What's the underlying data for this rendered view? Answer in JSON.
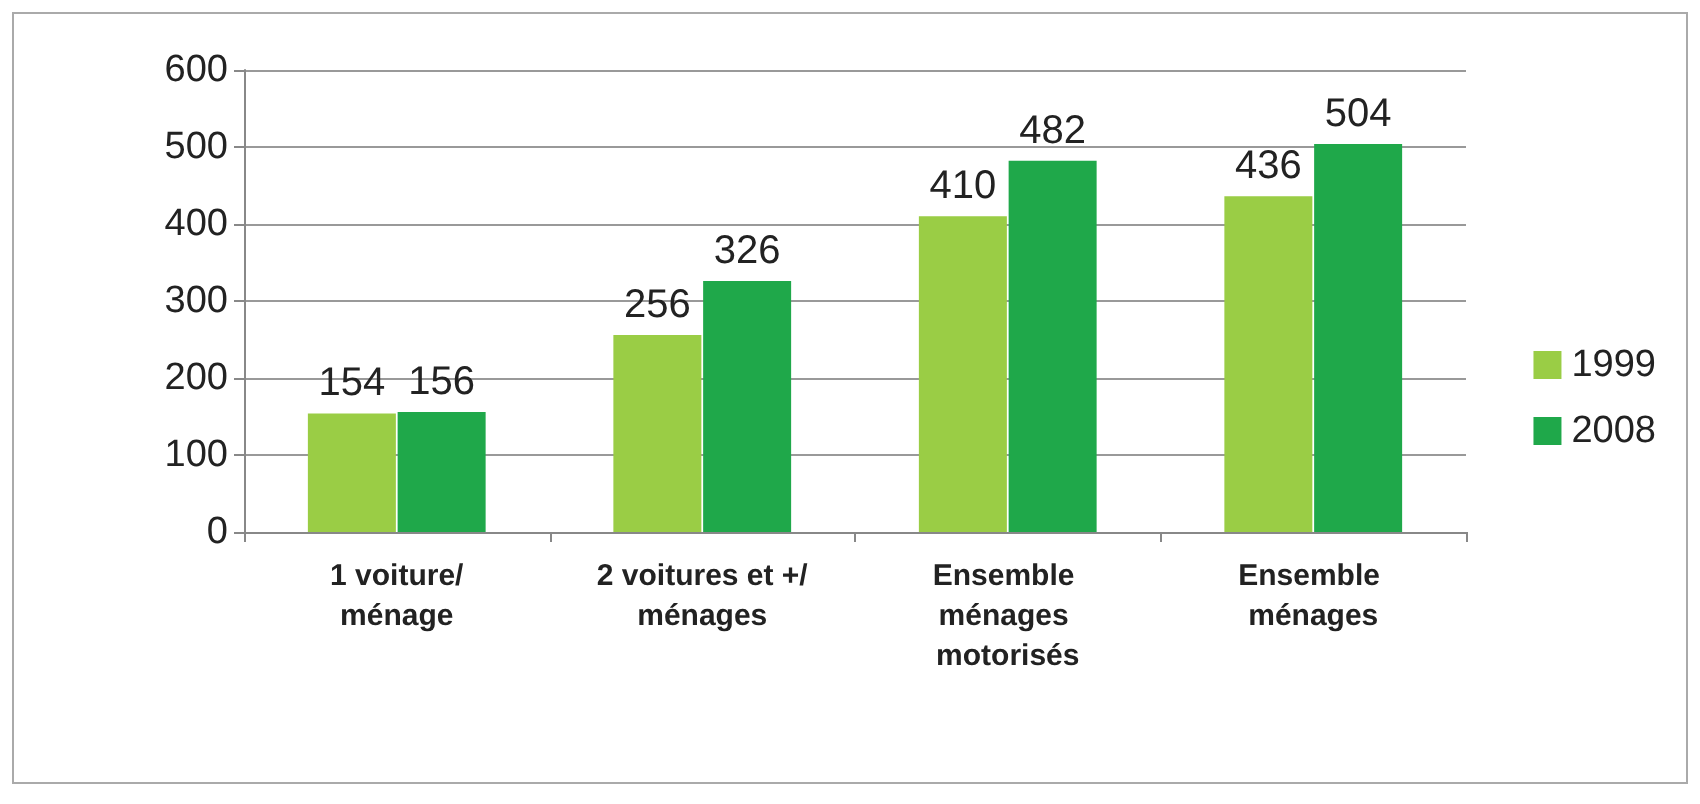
{
  "chart_data": {
    "type": "bar",
    "categories": [
      "1 voiture/ménage",
      "2 voitures et +/ménages",
      "Ensemble ménages motorisés",
      "Ensemble ménages"
    ],
    "series": [
      {
        "name": "1999",
        "color": "#9acd45",
        "values": [
          154,
          256,
          410,
          436
        ]
      },
      {
        "name": "2008",
        "color": "#1fa84a",
        "values": [
          156,
          326,
          482,
          504
        ]
      }
    ],
    "ylim": [
      0,
      600
    ],
    "yticks": [
      0,
      100,
      200,
      300,
      400,
      500,
      600
    ],
    "grid": "y",
    "legend": "right",
    "data_labels": true
  }
}
